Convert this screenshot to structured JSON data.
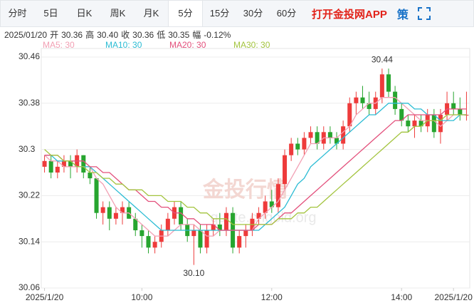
{
  "tabs": [
    "分时",
    "5日",
    "日K",
    "周K",
    "月K",
    "5分",
    "15分",
    "30分",
    "60分"
  ],
  "active_tab": 5,
  "brand": "打开金投网APP",
  "strategy_icon": "策",
  "info": {
    "date": "2025/01/20",
    "items": [
      {
        "label": "开",
        "value": "30.36"
      },
      {
        "label": "高",
        "value": "30.40"
      },
      {
        "label": "收",
        "value": "30.36"
      },
      {
        "label": "低",
        "value": "30.35"
      },
      {
        "label": "幅",
        "value": "-0.12%"
      }
    ]
  },
  "chart_data": {
    "type": "candlestick",
    "watermark": [
      "金投行情",
      "quote.cngold.org"
    ],
    "up_color": "#ee3b3b",
    "down_color": "#27a52f",
    "xlim": [
      -0.5,
      65.5
    ],
    "xticks": [
      {
        "value": 0,
        "label": "2025/1/20"
      },
      {
        "value": 15,
        "label": "10:00"
      },
      {
        "value": 35,
        "label": "12:00"
      },
      {
        "value": 55,
        "label": "14:00"
      },
      {
        "value": 63,
        "label": "2025/1/20"
      }
    ],
    "ylim": [
      30.06,
      30.46
    ],
    "yticks": [
      30.06,
      30.14,
      30.22,
      30.3,
      30.38,
      30.46
    ],
    "grid": true,
    "candles": [
      [
        30.27,
        30.29,
        30.26,
        30.28
      ],
      [
        30.28,
        30.29,
        30.25,
        30.26
      ],
      [
        30.26,
        30.28,
        30.25,
        30.27
      ],
      [
        30.27,
        30.29,
        30.26,
        30.28
      ],
      [
        30.28,
        30.29,
        30.25,
        30.27
      ],
      [
        30.27,
        30.3,
        30.26,
        30.29
      ],
      [
        30.29,
        30.29,
        30.25,
        30.26
      ],
      [
        30.26,
        30.27,
        30.24,
        30.25
      ],
      [
        30.25,
        30.25,
        30.18,
        30.19
      ],
      [
        30.19,
        30.21,
        30.17,
        30.2
      ],
      [
        30.2,
        30.21,
        30.16,
        30.18
      ],
      [
        30.18,
        30.2,
        30.17,
        30.19
      ],
      [
        30.19,
        30.21,
        30.17,
        30.2
      ],
      [
        30.2,
        30.21,
        30.18,
        30.18
      ],
      [
        30.18,
        30.19,
        30.15,
        30.16
      ],
      [
        30.16,
        30.17,
        30.13,
        30.15
      ],
      [
        30.15,
        30.16,
        30.12,
        30.13
      ],
      [
        30.13,
        30.15,
        30.12,
        30.14
      ],
      [
        30.14,
        30.17,
        30.13,
        30.16
      ],
      [
        30.16,
        30.19,
        30.15,
        30.18
      ],
      [
        30.18,
        30.21,
        30.17,
        30.2
      ],
      [
        30.2,
        30.21,
        30.16,
        30.17
      ],
      [
        30.17,
        30.18,
        30.14,
        30.15
      ],
      [
        30.15,
        30.17,
        30.1,
        30.16
      ],
      [
        30.16,
        30.17,
        30.12,
        30.13
      ],
      [
        30.13,
        30.17,
        30.12,
        30.16
      ],
      [
        30.16,
        30.18,
        30.15,
        30.17
      ],
      [
        30.17,
        30.19,
        30.15,
        30.16
      ],
      [
        30.16,
        30.2,
        30.15,
        30.19
      ],
      [
        30.19,
        30.2,
        30.12,
        30.13
      ],
      [
        30.13,
        30.16,
        30.12,
        30.15
      ],
      [
        30.15,
        30.17,
        30.13,
        30.16
      ],
      [
        30.16,
        30.19,
        30.15,
        30.18
      ],
      [
        30.18,
        30.2,
        30.17,
        30.19
      ],
      [
        30.19,
        30.22,
        30.18,
        30.21
      ],
      [
        30.21,
        30.23,
        30.19,
        30.2
      ],
      [
        30.2,
        30.25,
        30.19,
        30.24
      ],
      [
        30.24,
        30.3,
        30.23,
        30.29
      ],
      [
        30.29,
        30.32,
        30.28,
        30.31
      ],
      [
        30.31,
        30.32,
        30.29,
        30.3
      ],
      [
        30.3,
        30.33,
        30.29,
        30.32
      ],
      [
        30.32,
        30.34,
        30.31,
        30.33
      ],
      [
        30.33,
        30.34,
        30.3,
        30.31
      ],
      [
        30.31,
        30.34,
        30.3,
        30.33
      ],
      [
        30.33,
        30.34,
        30.31,
        30.32
      ],
      [
        30.32,
        30.33,
        30.3,
        30.31
      ],
      [
        30.31,
        30.35,
        30.3,
        30.34
      ],
      [
        30.34,
        30.39,
        30.33,
        30.38
      ],
      [
        30.38,
        30.4,
        30.36,
        30.39
      ],
      [
        30.39,
        30.41,
        30.37,
        30.38
      ],
      [
        30.38,
        30.4,
        30.36,
        30.37
      ],
      [
        30.37,
        30.4,
        30.36,
        30.39
      ],
      [
        30.39,
        30.44,
        30.38,
        30.43
      ],
      [
        30.43,
        30.44,
        30.39,
        30.4
      ],
      [
        30.4,
        30.41,
        30.36,
        30.37
      ],
      [
        30.37,
        30.38,
        30.34,
        30.35
      ],
      [
        30.35,
        30.36,
        30.33,
        30.34
      ],
      [
        30.34,
        30.36,
        30.32,
        30.35
      ],
      [
        30.35,
        30.36,
        30.33,
        30.34
      ],
      [
        30.34,
        30.37,
        30.33,
        30.36
      ],
      [
        30.36,
        30.37,
        30.32,
        30.33
      ],
      [
        30.33,
        30.37,
        30.31,
        30.36
      ],
      [
        30.36,
        30.4,
        30.35,
        30.38
      ],
      [
        30.38,
        30.4,
        30.36,
        30.37
      ],
      [
        30.37,
        30.39,
        30.35,
        30.36
      ],
      [
        30.36,
        30.4,
        30.35,
        30.36
      ]
    ],
    "max_label": "30.44",
    "min_label": "30.10",
    "ma": [
      {
        "name": "MA5: 30",
        "color": "#f2a0b4",
        "values": [
          30.29,
          30.28,
          30.28,
          30.27,
          30.27,
          30.27,
          30.27,
          30.27,
          30.25,
          30.24,
          30.22,
          30.2,
          30.19,
          30.19,
          30.18,
          30.17,
          30.16,
          30.15,
          30.15,
          30.15,
          30.16,
          30.17,
          30.17,
          30.17,
          30.16,
          30.15,
          30.15,
          30.16,
          30.16,
          30.16,
          30.16,
          30.16,
          30.16,
          30.18,
          30.19,
          30.2,
          30.21,
          30.23,
          30.25,
          30.27,
          30.29,
          30.31,
          30.31,
          30.32,
          30.32,
          30.32,
          30.33,
          30.34,
          30.36,
          30.37,
          30.38,
          30.38,
          30.39,
          30.39,
          30.39,
          30.38,
          30.37,
          30.36,
          30.35,
          30.35,
          30.35,
          30.34,
          30.35,
          30.36,
          30.36,
          30.36
        ]
      },
      {
        "name": "MA10: 30",
        "color": "#2bbcd4",
        "values": [
          30.29,
          30.29,
          30.28,
          30.28,
          30.28,
          30.27,
          30.27,
          30.27,
          30.26,
          30.25,
          30.24,
          30.23,
          30.22,
          30.21,
          30.2,
          30.19,
          30.18,
          30.17,
          30.16,
          30.16,
          30.16,
          30.16,
          30.16,
          30.16,
          30.16,
          30.16,
          30.16,
          30.16,
          30.16,
          30.16,
          30.16,
          30.16,
          30.16,
          30.16,
          30.17,
          30.18,
          30.19,
          30.2,
          30.22,
          30.24,
          30.25,
          30.27,
          30.28,
          30.29,
          30.3,
          30.31,
          30.32,
          30.33,
          30.34,
          30.35,
          30.36,
          30.36,
          30.37,
          30.38,
          30.38,
          30.38,
          30.38,
          30.37,
          30.37,
          30.36,
          30.36,
          30.35,
          30.35,
          30.35,
          30.36,
          30.36
        ]
      },
      {
        "name": "MA20: 30",
        "color": "#e3507c",
        "values": [
          30.29,
          30.29,
          30.29,
          30.28,
          30.28,
          30.28,
          30.28,
          30.27,
          30.27,
          30.26,
          30.26,
          30.25,
          30.24,
          30.23,
          30.23,
          30.22,
          30.21,
          30.21,
          30.2,
          30.2,
          30.19,
          30.19,
          30.18,
          30.18,
          30.17,
          30.17,
          30.17,
          30.16,
          30.16,
          30.16,
          30.16,
          30.16,
          30.16,
          30.17,
          30.17,
          30.17,
          30.18,
          30.19,
          30.19,
          30.2,
          30.21,
          30.22,
          30.23,
          30.24,
          30.25,
          30.26,
          30.27,
          30.28,
          30.29,
          30.3,
          30.31,
          30.32,
          30.33,
          30.34,
          30.35,
          30.35,
          30.36,
          30.36,
          30.36,
          30.36,
          30.36,
          30.36,
          30.37,
          30.37,
          30.37,
          30.37
        ]
      },
      {
        "name": "MA30: 30",
        "color": "#a3c43e",
        "values": [
          30.3,
          30.29,
          30.29,
          30.28,
          30.28,
          30.27,
          30.27,
          30.26,
          30.26,
          30.25,
          30.25,
          30.24,
          30.24,
          30.23,
          30.23,
          30.23,
          30.22,
          30.22,
          30.22,
          30.21,
          30.21,
          30.21,
          30.2,
          30.2,
          30.19,
          30.19,
          30.18,
          30.18,
          30.18,
          30.17,
          30.17,
          30.17,
          30.17,
          30.17,
          30.17,
          30.17,
          30.18,
          30.18,
          30.18,
          30.19,
          30.19,
          30.2,
          30.2,
          30.21,
          30.22,
          30.23,
          30.24,
          30.25,
          30.26,
          30.27,
          30.28,
          30.29,
          30.3,
          30.31,
          30.32,
          30.33,
          30.33,
          30.34,
          30.34,
          30.35,
          30.35,
          30.35,
          30.36,
          30.36,
          30.36,
          30.36
        ]
      }
    ]
  }
}
